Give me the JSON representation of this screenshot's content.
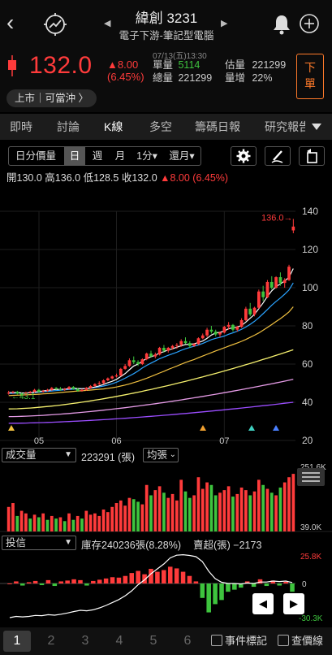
{
  "header": {
    "stock_name": "緯創 3231",
    "industry": "電子下游-筆記型電腦",
    "prev_arrow": "◀",
    "next_arrow": "▶"
  },
  "quote": {
    "price": "132.0",
    "change": "▲8.00",
    "change_pct": "(6.45%)",
    "time": "07/13(五)13:30",
    "unit_vol_label": "單量",
    "unit_vol": "5114",
    "est_vol_label": "估量",
    "est_vol": "221299",
    "total_vol_label": "總量",
    "total_vol": "221299",
    "vol_inc_label": "量增",
    "vol_inc": "22%",
    "order_button": "下單",
    "market_tag": "上市｜可當沖 〉"
  },
  "tabs": [
    {
      "label": "即時"
    },
    {
      "label": "討論"
    },
    {
      "label": "K線"
    },
    {
      "label": "多空"
    },
    {
      "label": "籌碼日報"
    },
    {
      "label": "研究報告"
    }
  ],
  "toolbar": {
    "daily_price_volume": "日分價量",
    "periods": [
      "日",
      "週",
      "月",
      "1分▾",
      "還月▾"
    ]
  },
  "ohlc": {
    "open_label": "開",
    "open": "130.0",
    "high_label": "高",
    "high": "136.0",
    "low_label": "低",
    "low": "128.5",
    "close_label": "收",
    "close": "132.0",
    "change": "▲8.00 (6.45%)"
  },
  "colors": {
    "up": "#ff3b3b",
    "down": "#3ec43e",
    "ma5": "#ffffff",
    "ma10": "#2aa3ff",
    "ma20": "#f0c040",
    "ma60": "#f5f06e",
    "ma120": "#e59be6",
    "ma240": "#9b4dff",
    "accent": "#ff7a2a"
  },
  "chart_data": [
    {
      "type": "candlestick",
      "title": "",
      "yticks": [
        140,
        120,
        100,
        80,
        60,
        40,
        20
      ],
      "ylim": [
        20,
        140
      ],
      "xticks": [
        "05",
        "06",
        "07"
      ],
      "max_label": "136.0→",
      "min_label": "43.1",
      "candles": [
        [
          45,
          46,
          44,
          45
        ],
        [
          45,
          46,
          44.5,
          45.5
        ],
        [
          45.5,
          46,
          44,
          44.5
        ],
        [
          44.5,
          45,
          43.1,
          44
        ],
        [
          44,
          45.5,
          43.5,
          45
        ],
        [
          45,
          46,
          44.5,
          45.5
        ],
        [
          45.5,
          47,
          45,
          46.5
        ],
        [
          46.5,
          47,
          45,
          45.5
        ],
        [
          45.5,
          46.5,
          45,
          46
        ],
        [
          46,
          47,
          45.5,
          46.5
        ],
        [
          46.5,
          48,
          46,
          47.5
        ],
        [
          47.5,
          48,
          46.5,
          47
        ],
        [
          47,
          48,
          46,
          46.5
        ],
        [
          46.5,
          47.5,
          46,
          47
        ],
        [
          47,
          48.5,
          46.5,
          48
        ],
        [
          48,
          48.5,
          46.5,
          47
        ],
        [
          47,
          47.5,
          45.5,
          46
        ],
        [
          46,
          47,
          45.5,
          46.5
        ],
        [
          46.5,
          48,
          46,
          47.5
        ],
        [
          47.5,
          49,
          47,
          48.5
        ],
        [
          48.5,
          50,
          48,
          49.5
        ],
        [
          49.5,
          51,
          49,
          50
        ],
        [
          50,
          52,
          49.5,
          51.5
        ],
        [
          51.5,
          53,
          51,
          52.5
        ],
        [
          52.5,
          54,
          52,
          53.5
        ],
        [
          53.5,
          55,
          53,
          54
        ],
        [
          54,
          58,
          53.5,
          57.5
        ],
        [
          57.5,
          60,
          57,
          59
        ],
        [
          59,
          63,
          58.5,
          62
        ],
        [
          62,
          64,
          60,
          61
        ],
        [
          61,
          62,
          59,
          60
        ],
        [
          60,
          63,
          59.5,
          62.5
        ],
        [
          62.5,
          66,
          62,
          65.5
        ],
        [
          65.5,
          67,
          63.5,
          64
        ],
        [
          64,
          66,
          63,
          65
        ],
        [
          65,
          69,
          64.5,
          68.5
        ],
        [
          68.5,
          70,
          66,
          67
        ],
        [
          67,
          69,
          66,
          68.5
        ],
        [
          68.5,
          70,
          67.5,
          69.5
        ],
        [
          69.5,
          71,
          68,
          70
        ],
        [
          70,
          73,
          69,
          72
        ],
        [
          72,
          74,
          70.5,
          71
        ],
        [
          71,
          72,
          68.5,
          69.5
        ],
        [
          69.5,
          71,
          69,
          70.5
        ],
        [
          70.5,
          74,
          70,
          73.5
        ],
        [
          73.5,
          76,
          73,
          75
        ],
        [
          75,
          79,
          74,
          78
        ],
        [
          78,
          80,
          76,
          77
        ],
        [
          77,
          78,
          74.5,
          75.5
        ],
        [
          75.5,
          77,
          74,
          76.5
        ],
        [
          76.5,
          80,
          76,
          79.5
        ],
        [
          79.5,
          82,
          78,
          80.5
        ],
        [
          80.5,
          81,
          77,
          78
        ],
        [
          78,
          80,
          77,
          79.5
        ],
        [
          79.5,
          84,
          79,
          83
        ],
        [
          83,
          90,
          82.5,
          89
        ],
        [
          89,
          92,
          85,
          86
        ],
        [
          86,
          90,
          85,
          89.5
        ],
        [
          89.5,
          99,
          89,
          98
        ],
        [
          98,
          101,
          93,
          95
        ],
        [
          95,
          104,
          94.5,
          103
        ],
        [
          103,
          106,
          99,
          100
        ],
        [
          100,
          106,
          99.5,
          105.5
        ],
        [
          105.5,
          108,
          101,
          102.5
        ],
        [
          102.5,
          105,
          100,
          104
        ],
        [
          104,
          112,
          103.5,
          111
        ],
        [
          130,
          136,
          128.5,
          132
        ]
      ],
      "ma": {
        "ma5": [
          45,
          45.2,
          45.1,
          44.9,
          44.8,
          45,
          45.3,
          45.6,
          45.9,
          46.2,
          46.5,
          46.7,
          46.8,
          46.9,
          47.1,
          47.3,
          47.2,
          47.1,
          47.2,
          47.5,
          48,
          48.6,
          49.3,
          50.2,
          51,
          52,
          53.5,
          55,
          57,
          59,
          60,
          61.5,
          63,
          63.8,
          64.6,
          65.8,
          66.5,
          67.4,
          68,
          68.8,
          69.6,
          70.2,
          70.4,
          70.6,
          71.3,
          72.1,
          73.5,
          75.2,
          76.3,
          76.6,
          77.3,
          78.5,
          79,
          79.4,
          80.2,
          82,
          84,
          86,
          89,
          92,
          95.5,
          98.4,
          100.5,
          102,
          103.5,
          105.5,
          110
        ],
        "ma10": [
          44.6,
          44.7,
          44.8,
          44.8,
          44.9,
          45,
          45.1,
          45.3,
          45.5,
          45.7,
          45.9,
          46.1,
          46.3,
          46.5,
          46.7,
          46.9,
          47,
          47.1,
          47.2,
          47.4,
          47.7,
          48.1,
          48.5,
          49,
          49.7,
          50.5,
          51.5,
          52.6,
          53.8,
          55,
          56.4,
          58,
          59.3,
          60.5,
          61.6,
          62.8,
          63.7,
          64.6,
          65.4,
          66.2,
          67.2,
          68,
          68.7,
          69.3,
          70,
          70.8,
          71.8,
          72.8,
          73.5,
          74,
          74.7,
          75.6,
          76.4,
          77.2,
          78.2,
          79.4,
          80.8,
          82.4,
          84.3,
          86.4,
          88.6,
          90.8,
          92.8,
          94.6,
          96.6,
          98.8,
          102.5
        ],
        "ma20": [
          43.5,
          43.6,
          43.7,
          43.8,
          43.9,
          44,
          44.1,
          44.2,
          44.4,
          44.5,
          44.7,
          44.9,
          45.1,
          45.3,
          45.5,
          45.7,
          45.9,
          46,
          46.2,
          46.4,
          46.6,
          46.8,
          47,
          47.3,
          47.6,
          48,
          48.5,
          49,
          49.6,
          50.3,
          51,
          51.8,
          52.6,
          53.5,
          54.4,
          55.3,
          56.2,
          57.2,
          58.1,
          59,
          59.9,
          60.8,
          61.6,
          62.4,
          63.3,
          64.2,
          65.1,
          66,
          66.9,
          67.7,
          68.5,
          69.4,
          70.2,
          71,
          71.9,
          72.9,
          74,
          75.1,
          76.3,
          77.7,
          79.2,
          80.7,
          82.3,
          83.8,
          85.5,
          87.3,
          90
        ]
      },
      "long_ma": {
        "ma60": [
          36.5,
          67.5
        ],
        "ma120": [
          32.5,
          52
        ],
        "ma240": [
          29,
          40
        ]
      }
    },
    {
      "type": "bar",
      "title": "成交量",
      "series_label": "成交量",
      "value_label": "223291 (張)",
      "y_top_label": "251.6K",
      "y_bottom_label": "39.0K",
      "values": [
        95,
        110,
        60,
        80,
        70,
        50,
        65,
        55,
        70,
        45,
        60,
        50,
        55,
        40,
        70,
        45,
        60,
        50,
        80,
        65,
        70,
        60,
        85,
        75,
        95,
        110,
        120,
        100,
        130,
        125,
        115,
        105,
        180,
        140,
        160,
        175,
        150,
        130,
        145,
        120,
        200,
        155,
        130,
        140,
        210,
        165,
        190,
        180,
        140,
        150,
        160,
        175,
        135,
        145,
        170,
        160,
        140,
        155,
        200,
        180,
        165,
        150,
        140,
        170,
        190,
        210,
        223
      ],
      "up": [
        1,
        1,
        0,
        1,
        1,
        0,
        1,
        0,
        1,
        0,
        1,
        0,
        1,
        0,
        1,
        0,
        1,
        0,
        1,
        1,
        1,
        1,
        1,
        1,
        1,
        1,
        1,
        1,
        1,
        0,
        0,
        1,
        1,
        0,
        1,
        1,
        0,
        1,
        1,
        1,
        1,
        0,
        0,
        1,
        1,
        1,
        1,
        0,
        0,
        1,
        1,
        1,
        0,
        1,
        1,
        1,
        0,
        1,
        1,
        0,
        1,
        0,
        1,
        0,
        1,
        1,
        1
      ]
    },
    {
      "type": "bar",
      "title": "投信",
      "inventory": "庫存240236張(8.28%)",
      "net": "賣超(張) −2173",
      "y_top_label": "25.8K",
      "y_zero_label": "0",
      "y_bottom_label": "-30.3K",
      "values": [
        0,
        0.5,
        -0.5,
        0.3,
        0.6,
        -0.4,
        0.8,
        -0.6,
        0.5,
        0.7,
        1.0,
        0.8,
        -0.5,
        0.6,
        0.9,
        1.2,
        1.5,
        1.4,
        1.8,
        2.5,
        3.0,
        2.2,
        3.5,
        2.8,
        3.2,
        4.0,
        3.6,
        2.8,
        1.8,
        0.5,
        -3.5,
        -7,
        -5,
        -4,
        -2,
        -1.5,
        -1,
        0.5,
        -0.8,
        1.0,
        -0.6,
        0.7,
        -0.5,
        0.4,
        -2
      ],
      "cumulative": [
        0,
        0.5,
        0.3,
        0.5,
        0.9,
        0.8,
        1.2,
        1.0,
        1.4,
        1.9,
        2.5,
        3.0,
        2.8,
        3.2,
        4.0,
        5,
        6.2,
        7.4,
        9.0,
        11,
        13.5,
        15.5,
        18,
        20,
        22,
        24.5,
        25.6,
        25.8,
        25.5,
        25,
        23,
        19,
        16,
        14.5,
        14,
        14,
        13.8,
        14.2,
        14,
        14.6,
        14.6,
        15,
        14.8,
        15,
        14.4
      ]
    }
  ],
  "volume_bar": {
    "label": "成交量",
    "value": "223291 (張)",
    "mode": "均張"
  },
  "trust_bar": {
    "label": "投信",
    "inventory": "庫存240236張(8.28%)",
    "net": "賣超(張) −2173"
  },
  "bottom": {
    "pages": [
      "1",
      "2",
      "3",
      "4",
      "5",
      "6"
    ],
    "event_mark": "事件標記",
    "price_search": "查價線"
  }
}
